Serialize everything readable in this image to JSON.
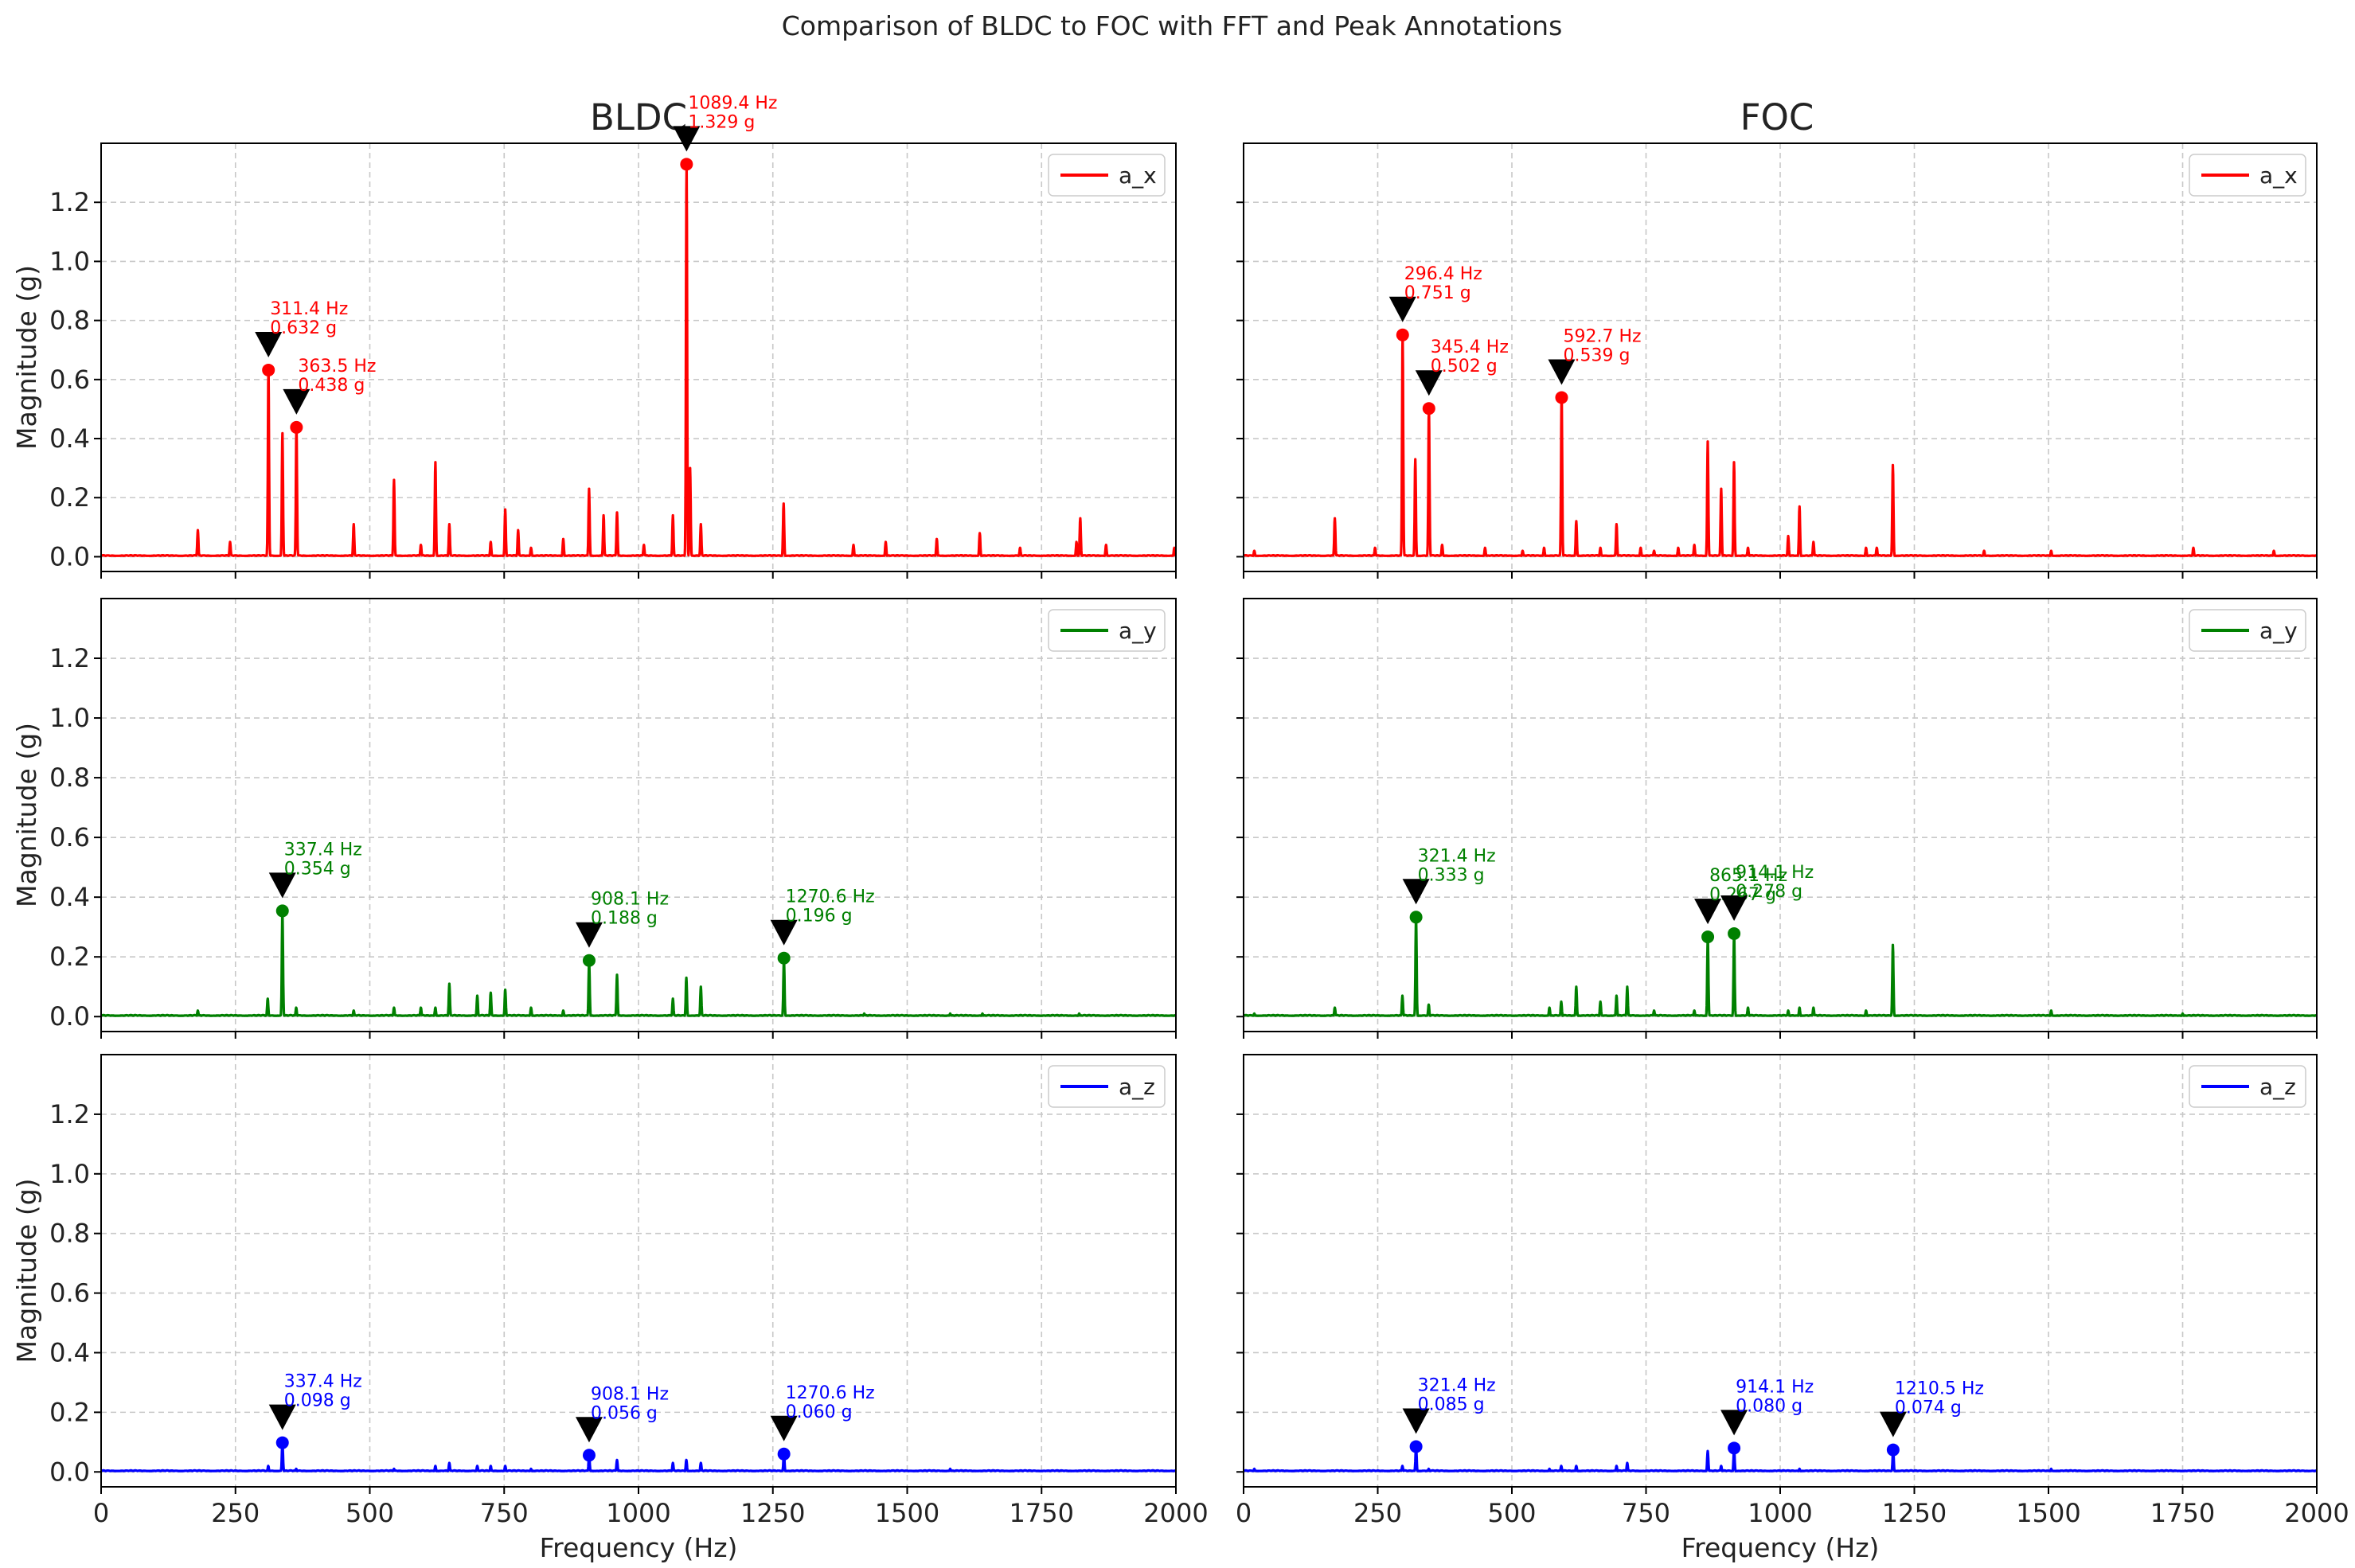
{
  "figure": {
    "title": "Comparison of BLDC to FOC with FFT and Peak Annotations"
  },
  "columns": [
    "BLDC",
    "FOC"
  ],
  "axes": {
    "xlabel": "Frequency (Hz)",
    "ylabel": "Magnitude (g)",
    "xlim": [
      0,
      2000
    ],
    "ylim": [
      -0.05,
      1.4
    ],
    "xticks": [
      0,
      250,
      500,
      750,
      1000,
      1250,
      1500,
      1750,
      2000
    ],
    "yticks": [
      0.0,
      0.2,
      0.4,
      0.6,
      0.8,
      1.0,
      1.2
    ],
    "grid": true,
    "legend_position": "top-right"
  },
  "colors": {
    "a_x": "#ff0000",
    "a_y": "#008000",
    "a_z": "#0000ff",
    "marker": "#000000"
  },
  "chart_data": [
    {
      "type": "line",
      "column": "BLDC",
      "row": 0,
      "series_name": "a_x",
      "color": "#ff0000",
      "spikes": [
        [
          180,
          0.09
        ],
        [
          240,
          0.05
        ],
        [
          311.4,
          0.632
        ],
        [
          337.4,
          0.42
        ],
        [
          363.5,
          0.438
        ],
        [
          470,
          0.11
        ],
        [
          545,
          0.26
        ],
        [
          595,
          0.04
        ],
        [
          622,
          0.32
        ],
        [
          648,
          0.11
        ],
        [
          725,
          0.05
        ],
        [
          752,
          0.16
        ],
        [
          776,
          0.09
        ],
        [
          800,
          0.03
        ],
        [
          860,
          0.06
        ],
        [
          908,
          0.23
        ],
        [
          935,
          0.14
        ],
        [
          960,
          0.15
        ],
        [
          1010,
          0.04
        ],
        [
          1064,
          0.14
        ],
        [
          1089.4,
          1.329
        ],
        [
          1096,
          0.3
        ],
        [
          1116,
          0.11
        ],
        [
          1270,
          0.18
        ],
        [
          1400,
          0.04
        ],
        [
          1460,
          0.05
        ],
        [
          1555,
          0.06
        ],
        [
          1635,
          0.08
        ],
        [
          1710,
          0.03
        ],
        [
          1815,
          0.05
        ],
        [
          1822,
          0.13
        ],
        [
          1870,
          0.04
        ],
        [
          1997,
          0.03
        ]
      ],
      "peaks": [
        {
          "label": "311.4 Hz\n0.632 g",
          "x": 311.4,
          "y": 0.632
        },
        {
          "label": "363.5 Hz\n0.438 g",
          "x": 363.5,
          "y": 0.438
        },
        {
          "label": "1089.4 Hz\n1.329 g",
          "x": 1089.4,
          "y": 1.329
        }
      ]
    },
    {
      "type": "line",
      "column": "FOC",
      "row": 0,
      "series_name": "a_x",
      "color": "#ff0000",
      "spikes": [
        [
          20,
          0.02
        ],
        [
          170,
          0.13
        ],
        [
          245,
          0.03
        ],
        [
          296.4,
          0.751
        ],
        [
          320,
          0.33
        ],
        [
          345.4,
          0.502
        ],
        [
          370,
          0.04
        ],
        [
          450,
          0.03
        ],
        [
          520,
          0.02
        ],
        [
          560,
          0.03
        ],
        [
          592.7,
          0.539
        ],
        [
          620,
          0.12
        ],
        [
          665,
          0.03
        ],
        [
          695,
          0.11
        ],
        [
          740,
          0.03
        ],
        [
          765,
          0.02
        ],
        [
          810,
          0.03
        ],
        [
          840,
          0.04
        ],
        [
          865,
          0.39
        ],
        [
          890,
          0.23
        ],
        [
          914,
          0.32
        ],
        [
          940,
          0.03
        ],
        [
          1015,
          0.07
        ],
        [
          1036,
          0.17
        ],
        [
          1062,
          0.05
        ],
        [
          1160,
          0.03
        ],
        [
          1180,
          0.03
        ],
        [
          1210,
          0.31
        ],
        [
          1380,
          0.02
        ],
        [
          1505,
          0.02
        ],
        [
          1770,
          0.03
        ],
        [
          1920,
          0.02
        ]
      ],
      "peaks": [
        {
          "label": "296.4 Hz\n0.751 g",
          "x": 296.4,
          "y": 0.751
        },
        {
          "label": "345.4 Hz\n0.502 g",
          "x": 345.4,
          "y": 0.502
        },
        {
          "label": "592.7 Hz\n0.539 g",
          "x": 592.7,
          "y": 0.539
        }
      ]
    },
    {
      "type": "line",
      "column": "BLDC",
      "row": 1,
      "series_name": "a_y",
      "color": "#008000",
      "spikes": [
        [
          180,
          0.02
        ],
        [
          310,
          0.06
        ],
        [
          337.4,
          0.354
        ],
        [
          363,
          0.03
        ],
        [
          470,
          0.02
        ],
        [
          545,
          0.03
        ],
        [
          595,
          0.03
        ],
        [
          622,
          0.03
        ],
        [
          648,
          0.11
        ],
        [
          700,
          0.07
        ],
        [
          725,
          0.08
        ],
        [
          752,
          0.09
        ],
        [
          800,
          0.03
        ],
        [
          860,
          0.02
        ],
        [
          908.1,
          0.188
        ],
        [
          960,
          0.14
        ],
        [
          1064,
          0.06
        ],
        [
          1089,
          0.13
        ],
        [
          1116,
          0.1
        ],
        [
          1270.6,
          0.196
        ],
        [
          1420,
          0.01
        ],
        [
          1580,
          0.01
        ],
        [
          1640,
          0.01
        ],
        [
          1820,
          0.01
        ]
      ],
      "peaks": [
        {
          "label": "337.4 Hz\n0.354 g",
          "x": 337.4,
          "y": 0.354
        },
        {
          "label": "908.1 Hz\n0.188 g",
          "x": 908.1,
          "y": 0.188
        },
        {
          "label": "1270.6 Hz\n0.196 g",
          "x": 1270.6,
          "y": 0.196
        }
      ]
    },
    {
      "type": "line",
      "column": "FOC",
      "row": 1,
      "series_name": "a_y",
      "color": "#008000",
      "spikes": [
        [
          20,
          0.01
        ],
        [
          170,
          0.03
        ],
        [
          296,
          0.07
        ],
        [
          321.4,
          0.333
        ],
        [
          345,
          0.04
        ],
        [
          570,
          0.03
        ],
        [
          592,
          0.05
        ],
        [
          620,
          0.1
        ],
        [
          665,
          0.05
        ],
        [
          695,
          0.07
        ],
        [
          715,
          0.1
        ],
        [
          765,
          0.02
        ],
        [
          840,
          0.02
        ],
        [
          865.1,
          0.267
        ],
        [
          914.1,
          0.278
        ],
        [
          940,
          0.03
        ],
        [
          1015,
          0.02
        ],
        [
          1036,
          0.03
        ],
        [
          1062,
          0.03
        ],
        [
          1160,
          0.02
        ],
        [
          1210,
          0.24
        ],
        [
          1505,
          0.02
        ],
        [
          1750,
          0.01
        ]
      ],
      "peaks": [
        {
          "label": "865.1 Hz\n0.267 g",
          "x": 865.1,
          "y": 0.267
        },
        {
          "label": "321.4 Hz\n0.333 g",
          "x": 321.4,
          "y": 0.333
        },
        {
          "label": "914.1 Hz\n0.278 g",
          "x": 914.1,
          "y": 0.278
        }
      ]
    },
    {
      "type": "line",
      "column": "BLDC",
      "row": 2,
      "series_name": "a_z",
      "color": "#0000ff",
      "spikes": [
        [
          311,
          0.02
        ],
        [
          337.4,
          0.098
        ],
        [
          363,
          0.01
        ],
        [
          545,
          0.01
        ],
        [
          622,
          0.02
        ],
        [
          648,
          0.03
        ],
        [
          700,
          0.02
        ],
        [
          725,
          0.02
        ],
        [
          752,
          0.02
        ],
        [
          800,
          0.01
        ],
        [
          908.1,
          0.056
        ],
        [
          960,
          0.04
        ],
        [
          1064,
          0.03
        ],
        [
          1089,
          0.04
        ],
        [
          1116,
          0.03
        ],
        [
          1270.6,
          0.06
        ],
        [
          1580,
          0.01
        ]
      ],
      "peaks": [
        {
          "label": "337.4 Hz\n0.098 g",
          "x": 337.4,
          "y": 0.098
        },
        {
          "label": "908.1 Hz\n0.056 g",
          "x": 908.1,
          "y": 0.056
        },
        {
          "label": "1270.6 Hz\n0.060 g",
          "x": 1270.6,
          "y": 0.06
        }
      ]
    },
    {
      "type": "line",
      "column": "FOC",
      "row": 2,
      "series_name": "a_z",
      "color": "#0000ff",
      "spikes": [
        [
          20,
          0.01
        ],
        [
          296,
          0.02
        ],
        [
          321.4,
          0.085
        ],
        [
          345,
          0.01
        ],
        [
          570,
          0.01
        ],
        [
          592,
          0.02
        ],
        [
          620,
          0.02
        ],
        [
          695,
          0.02
        ],
        [
          715,
          0.03
        ],
        [
          865,
          0.07
        ],
        [
          890,
          0.02
        ],
        [
          914.1,
          0.08
        ],
        [
          1036,
          0.01
        ],
        [
          1210.5,
          0.074
        ],
        [
          1505,
          0.01
        ]
      ],
      "peaks": [
        {
          "label": "321.4 Hz\n0.085 g",
          "x": 321.4,
          "y": 0.085
        },
        {
          "label": "914.1 Hz\n0.080 g",
          "x": 914.1,
          "y": 0.08
        },
        {
          "label": "1210.5 Hz\n0.074 g",
          "x": 1210.5,
          "y": 0.074
        }
      ]
    }
  ]
}
